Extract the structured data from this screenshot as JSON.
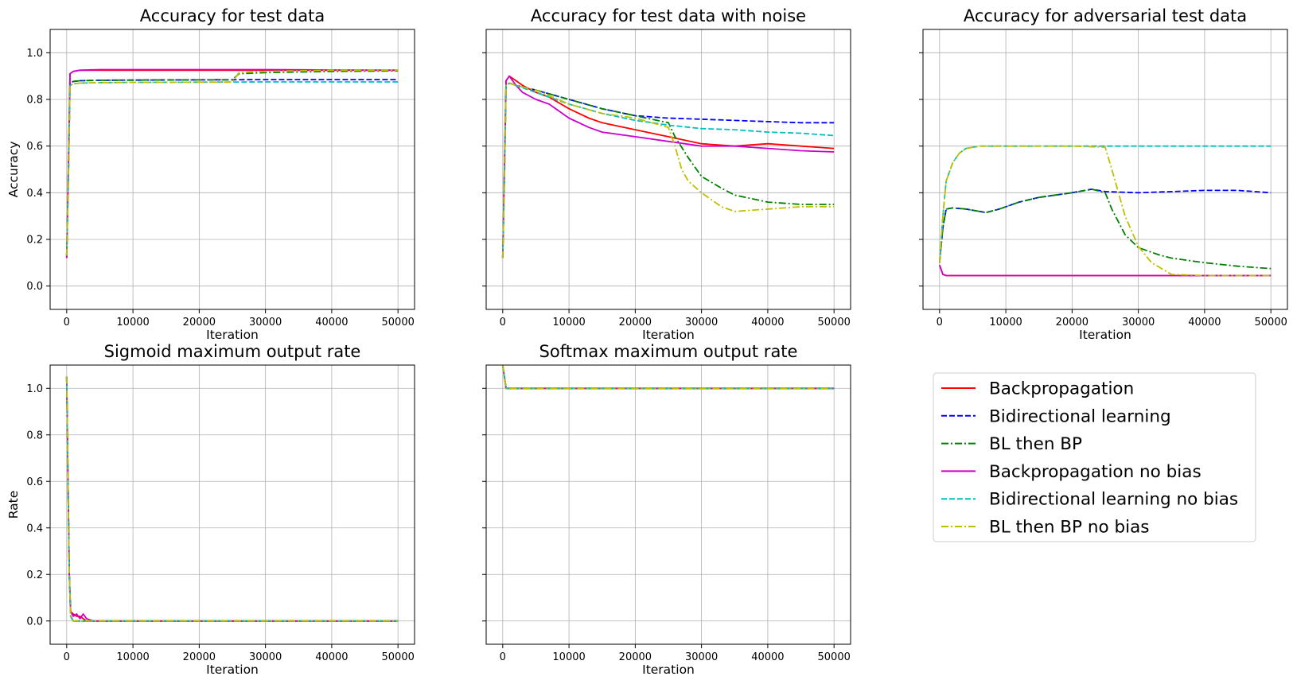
{
  "chart_data": [
    {
      "type": "line",
      "title": "Accuracy for test data",
      "xlabel": "Iteration",
      "ylabel": "Accuracy",
      "xlim": [
        -2500,
        52500
      ],
      "ylim": [
        -0.1,
        1.1
      ],
      "xticks": [
        0,
        10000,
        20000,
        30000,
        40000,
        50000
      ],
      "yticks": [
        0.0,
        0.2,
        0.4,
        0.6,
        0.8,
        1.0
      ],
      "show_yticklabels": true,
      "grid": true,
      "series": [
        {
          "name": "Backpropagation",
          "x": [
            0,
            250,
            500,
            1000,
            2000,
            5000,
            10000,
            20000,
            30000,
            40000,
            50000
          ],
          "y": [
            0.12,
            0.5,
            0.91,
            0.92,
            0.925,
            0.925,
            0.925,
            0.925,
            0.925,
            0.925,
            0.925
          ]
        },
        {
          "name": "Bidirectional learning",
          "x": [
            0,
            250,
            500,
            1000,
            2000,
            5000,
            10000,
            20000,
            30000,
            40000,
            50000
          ],
          "y": [
            0.13,
            0.45,
            0.87,
            0.877,
            0.88,
            0.882,
            0.883,
            0.884,
            0.885,
            0.885,
            0.885
          ]
        },
        {
          "name": "BL then BP",
          "x": [
            0,
            250,
            500,
            1000,
            2000,
            5000,
            10000,
            20000,
            25000,
            26000,
            30000,
            40000,
            50000
          ],
          "y": [
            0.13,
            0.45,
            0.87,
            0.877,
            0.88,
            0.882,
            0.883,
            0.884,
            0.884,
            0.91,
            0.915,
            0.92,
            0.922
          ]
        },
        {
          "name": "Backpropagation no bias",
          "x": [
            0,
            250,
            500,
            1000,
            2000,
            5000,
            10000,
            20000,
            30000,
            40000,
            50000
          ],
          "y": [
            0.12,
            0.5,
            0.91,
            0.92,
            0.925,
            0.928,
            0.928,
            0.928,
            0.928,
            0.926,
            0.925
          ]
        },
        {
          "name": "Bidirectional learning no bias",
          "x": [
            0,
            250,
            500,
            1000,
            2000,
            5000,
            10000,
            20000,
            30000,
            40000,
            50000
          ],
          "y": [
            0.13,
            0.45,
            0.86,
            0.867,
            0.87,
            0.872,
            0.873,
            0.874,
            0.875,
            0.875,
            0.875
          ]
        },
        {
          "name": "BL then BP no bias",
          "x": [
            0,
            250,
            500,
            1000,
            2000,
            5000,
            10000,
            20000,
            25000,
            26000,
            30000,
            40000,
            50000
          ],
          "y": [
            0.13,
            0.45,
            0.86,
            0.867,
            0.87,
            0.872,
            0.873,
            0.874,
            0.874,
            0.915,
            0.92,
            0.925,
            0.925
          ]
        }
      ]
    },
    {
      "type": "line",
      "title": "Accuracy for test data with noise",
      "xlabel": "Iteration",
      "ylabel": "",
      "xlim": [
        -2500,
        52500
      ],
      "ylim": [
        -0.1,
        1.1
      ],
      "xticks": [
        0,
        10000,
        20000,
        30000,
        40000,
        50000
      ],
      "yticks": [
        0.0,
        0.2,
        0.4,
        0.6,
        0.8,
        1.0
      ],
      "show_yticklabels": false,
      "grid": true,
      "series": [
        {
          "name": "Backpropagation",
          "x": [
            0,
            250,
            500,
            1000,
            2000,
            3000,
            5000,
            7000,
            10000,
            13000,
            15000,
            20000,
            25000,
            30000,
            35000,
            40000,
            45000,
            50000
          ],
          "y": [
            0.12,
            0.5,
            0.88,
            0.9,
            0.88,
            0.86,
            0.83,
            0.81,
            0.76,
            0.72,
            0.7,
            0.67,
            0.64,
            0.61,
            0.6,
            0.61,
            0.6,
            0.59
          ]
        },
        {
          "name": "Bidirectional learning",
          "x": [
            0,
            250,
            500,
            1000,
            2000,
            5000,
            10000,
            15000,
            20000,
            25000,
            30000,
            35000,
            40000,
            45000,
            50000
          ],
          "y": [
            0.12,
            0.45,
            0.86,
            0.87,
            0.86,
            0.84,
            0.8,
            0.76,
            0.73,
            0.72,
            0.715,
            0.71,
            0.705,
            0.7,
            0.7
          ]
        },
        {
          "name": "BL then BP",
          "x": [
            0,
            250,
            500,
            1000,
            2000,
            5000,
            10000,
            15000,
            20000,
            25000,
            26000,
            28000,
            30000,
            33000,
            35000,
            40000,
            45000,
            50000
          ],
          "y": [
            0.12,
            0.45,
            0.86,
            0.87,
            0.86,
            0.84,
            0.8,
            0.76,
            0.73,
            0.7,
            0.64,
            0.55,
            0.47,
            0.42,
            0.39,
            0.36,
            0.35,
            0.35
          ]
        },
        {
          "name": "Backpropagation no bias",
          "x": [
            0,
            250,
            500,
            1000,
            2000,
            3000,
            5000,
            7000,
            10000,
            13000,
            15000,
            20000,
            25000,
            30000,
            35000,
            40000,
            45000,
            50000
          ],
          "y": [
            0.12,
            0.5,
            0.88,
            0.9,
            0.86,
            0.83,
            0.8,
            0.78,
            0.72,
            0.68,
            0.66,
            0.64,
            0.62,
            0.6,
            0.6,
            0.59,
            0.58,
            0.575
          ]
        },
        {
          "name": "Bidirectional learning no bias",
          "x": [
            0,
            250,
            500,
            1000,
            2000,
            5000,
            10000,
            15000,
            20000,
            25000,
            30000,
            35000,
            40000,
            45000,
            50000
          ],
          "y": [
            0.12,
            0.45,
            0.86,
            0.87,
            0.86,
            0.83,
            0.78,
            0.74,
            0.71,
            0.69,
            0.675,
            0.67,
            0.66,
            0.655,
            0.645
          ]
        },
        {
          "name": "BL then BP no bias",
          "x": [
            0,
            250,
            500,
            1000,
            2000,
            5000,
            10000,
            15000,
            20000,
            25000,
            26000,
            27000,
            28000,
            30000,
            33000,
            35000,
            40000,
            45000,
            50000
          ],
          "y": [
            0.12,
            0.45,
            0.86,
            0.87,
            0.86,
            0.84,
            0.78,
            0.74,
            0.72,
            0.68,
            0.6,
            0.5,
            0.45,
            0.4,
            0.34,
            0.32,
            0.33,
            0.34,
            0.34
          ]
        }
      ]
    },
    {
      "type": "line",
      "title": "Accuracy for adversarial test data",
      "xlabel": "Iteration",
      "ylabel": "",
      "xlim": [
        -2500,
        52500
      ],
      "ylim": [
        -0.1,
        1.1
      ],
      "xticks": [
        0,
        10000,
        20000,
        30000,
        40000,
        50000
      ],
      "yticks": [
        0.0,
        0.2,
        0.4,
        0.6,
        0.8,
        1.0
      ],
      "show_yticklabels": false,
      "grid": true,
      "series": [
        {
          "name": "Backpropagation",
          "x": [
            0,
            500,
            1000,
            2000,
            5000,
            10000,
            20000,
            30000,
            40000,
            50000
          ],
          "y": [
            0.09,
            0.05,
            0.045,
            0.045,
            0.045,
            0.045,
            0.045,
            0.045,
            0.045,
            0.045
          ]
        },
        {
          "name": "Bidirectional learning",
          "x": [
            0,
            500,
            1000,
            2000,
            4000,
            6000,
            7000,
            9000,
            12000,
            15000,
            20000,
            23000,
            25000,
            30000,
            35000,
            40000,
            45000,
            50000
          ],
          "y": [
            0.1,
            0.25,
            0.33,
            0.335,
            0.33,
            0.32,
            0.315,
            0.33,
            0.36,
            0.38,
            0.4,
            0.415,
            0.405,
            0.4,
            0.405,
            0.41,
            0.41,
            0.4
          ]
        },
        {
          "name": "BL then BP",
          "x": [
            0,
            500,
            1000,
            2000,
            4000,
            6000,
            7000,
            9000,
            12000,
            15000,
            20000,
            23000,
            25000,
            26000,
            28000,
            30000,
            33000,
            35000,
            40000,
            45000,
            50000
          ],
          "y": [
            0.1,
            0.25,
            0.33,
            0.335,
            0.33,
            0.32,
            0.315,
            0.33,
            0.36,
            0.38,
            0.4,
            0.415,
            0.4,
            0.33,
            0.22,
            0.165,
            0.135,
            0.12,
            0.1,
            0.085,
            0.075
          ]
        },
        {
          "name": "Backpropagation no bias",
          "x": [
            0,
            500,
            1000,
            2000,
            5000,
            10000,
            20000,
            30000,
            40000,
            50000
          ],
          "y": [
            0.09,
            0.05,
            0.045,
            0.045,
            0.045,
            0.045,
            0.045,
            0.045,
            0.045,
            0.045
          ]
        },
        {
          "name": "Bidirectional learning no bias",
          "x": [
            0,
            500,
            1000,
            2000,
            3000,
            4000,
            6000,
            10000,
            20000,
            25000,
            30000,
            40000,
            50000
          ],
          "y": [
            0.1,
            0.3,
            0.45,
            0.53,
            0.57,
            0.59,
            0.6,
            0.6,
            0.6,
            0.6,
            0.6,
            0.6,
            0.6
          ]
        },
        {
          "name": "BL then BP no bias",
          "x": [
            0,
            500,
            1000,
            2000,
            3000,
            4000,
            6000,
            10000,
            20000,
            25000,
            26000,
            28000,
            30000,
            32000,
            35000,
            40000,
            50000
          ],
          "y": [
            0.1,
            0.3,
            0.45,
            0.53,
            0.57,
            0.59,
            0.6,
            0.6,
            0.6,
            0.595,
            0.5,
            0.3,
            0.17,
            0.1,
            0.05,
            0.045,
            0.045
          ]
        }
      ]
    },
    {
      "type": "line",
      "title": "Sigmoid maximum output rate",
      "xlabel": "Iteration",
      "ylabel": "Rate",
      "xlim": [
        -2500,
        52500
      ],
      "ylim": [
        -0.1,
        1.1
      ],
      "xticks": [
        0,
        10000,
        20000,
        30000,
        40000,
        50000
      ],
      "yticks": [
        0.0,
        0.2,
        0.4,
        0.6,
        0.8,
        1.0
      ],
      "show_yticklabels": true,
      "grid": true,
      "series": [
        {
          "name": "Backpropagation",
          "x": [
            0,
            200,
            400,
            600,
            1000,
            1500,
            2000,
            3000,
            5000,
            10000,
            50000
          ],
          "y": [
            1.05,
            0.6,
            0.2,
            0.04,
            0.03,
            0.02,
            0.02,
            0.0,
            0.0,
            0.0,
            0.0
          ]
        },
        {
          "name": "Bidirectional learning",
          "x": [
            0,
            200,
            400,
            600,
            1000,
            2000,
            50000
          ],
          "y": [
            1.05,
            0.6,
            0.2,
            0.02,
            0.0,
            0.0,
            0.0
          ]
        },
        {
          "name": "BL then BP",
          "x": [
            0,
            200,
            400,
            600,
            1000,
            2000,
            50000
          ],
          "y": [
            1.05,
            0.6,
            0.2,
            0.02,
            0.0,
            0.0,
            0.0
          ]
        },
        {
          "name": "Backpropagation no bias",
          "x": [
            0,
            200,
            400,
            600,
            1000,
            1500,
            2000,
            2500,
            3000,
            4000,
            50000
          ],
          "y": [
            1.05,
            0.6,
            0.2,
            0.04,
            0.02,
            0.03,
            0.01,
            0.03,
            0.01,
            0.0,
            0.0
          ]
        },
        {
          "name": "Bidirectional learning no bias",
          "x": [
            0,
            200,
            400,
            600,
            1000,
            2000,
            50000
          ],
          "y": [
            1.05,
            0.6,
            0.2,
            0.02,
            0.0,
            0.0,
            0.0
          ]
        },
        {
          "name": "BL then BP no bias",
          "x": [
            0,
            200,
            400,
            600,
            1000,
            2000,
            50000
          ],
          "y": [
            1.05,
            0.6,
            0.2,
            0.02,
            0.0,
            0.0,
            0.0
          ]
        }
      ]
    },
    {
      "type": "line",
      "title": "Softmax maximum output rate",
      "xlabel": "Iteration",
      "ylabel": "",
      "xlim": [
        -2500,
        52500
      ],
      "ylim": [
        -0.1,
        1.1
      ],
      "xticks": [
        0,
        10000,
        20000,
        30000,
        40000,
        50000
      ],
      "yticks": [
        0.0,
        0.2,
        0.4,
        0.6,
        0.8,
        1.0
      ],
      "show_yticklabels": false,
      "grid": true,
      "series": [
        {
          "name": "Backpropagation",
          "x": [
            0,
            250,
            500,
            50000
          ],
          "y": [
            1.1,
            1.05,
            1.0,
            1.0
          ]
        },
        {
          "name": "Bidirectional learning",
          "x": [
            0,
            250,
            500,
            50000
          ],
          "y": [
            1.1,
            1.05,
            1.0,
            1.0
          ]
        },
        {
          "name": "BL then BP",
          "x": [
            0,
            250,
            500,
            50000
          ],
          "y": [
            1.1,
            1.05,
            1.0,
            1.0
          ]
        },
        {
          "name": "Backpropagation no bias",
          "x": [
            0,
            250,
            500,
            50000
          ],
          "y": [
            1.1,
            1.05,
            1.0,
            1.0
          ]
        },
        {
          "name": "Bidirectional learning no bias",
          "x": [
            0,
            250,
            500,
            50000
          ],
          "y": [
            1.1,
            1.05,
            1.0,
            1.0
          ]
        },
        {
          "name": "BL then BP no bias",
          "x": [
            0,
            250,
            500,
            50000
          ],
          "y": [
            1.1,
            1.05,
            1.0,
            1.0
          ]
        }
      ]
    }
  ],
  "legend": {
    "placement": "bottom-right",
    "entries": [
      {
        "label": "Backpropagation",
        "color": "#ff0000",
        "style": "solid"
      },
      {
        "label": "Bidirectional learning",
        "color": "#0000ff",
        "style": "dashed"
      },
      {
        "label": "BL then BP",
        "color": "#008000",
        "style": "dashdot"
      },
      {
        "label": "Backpropagation no bias",
        "color": "#cc00cc",
        "style": "solid"
      },
      {
        "label": "Bidirectional learning no bias",
        "color": "#00bfbf",
        "style": "dashed"
      },
      {
        "label": "BL then BP no bias",
        "color": "#bfbf00",
        "style": "dashdot"
      }
    ]
  }
}
